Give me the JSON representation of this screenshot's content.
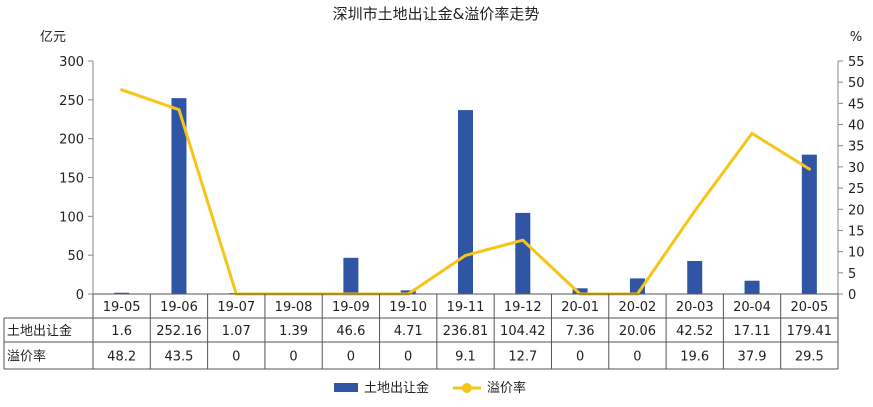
{
  "chart_data": {
    "type": "bar",
    "title": "深圳市土地出让金&溢价率走势",
    "y_left_unit": "亿元",
    "y_right_unit": "%",
    "y_left_ticks": [
      "0",
      "50",
      "100",
      "150",
      "200",
      "250",
      "300"
    ],
    "y_right_ticks": [
      "0",
      "5",
      "10",
      "15",
      "20",
      "25",
      "30",
      "35",
      "40",
      "45",
      "50",
      "55"
    ],
    "ylim_left": [
      0,
      300
    ],
    "ylim_right": [
      0,
      55
    ],
    "categories": [
      "19-05",
      "19-06",
      "19-07",
      "19-08",
      "19-09",
      "19-10",
      "19-11",
      "19-12",
      "20-01",
      "20-02",
      "20-03",
      "20-04",
      "20-05"
    ],
    "series": [
      {
        "name": "土地出让金",
        "kind": "bar",
        "axis": "left",
        "color": "#2f55a4",
        "values": [
          1.6,
          252.16,
          1.07,
          1.39,
          46.6,
          4.71,
          236.81,
          104.42,
          7.36,
          20.06,
          42.52,
          17.11,
          179.41
        ],
        "labels": [
          "1.6",
          "252.16",
          "1.07",
          "1.39",
          "46.6",
          "4.71",
          "236.81",
          "104.42",
          "7.36",
          "20.06",
          "42.52",
          "17.11",
          "179.41"
        ]
      },
      {
        "name": "溢价率",
        "kind": "line",
        "axis": "right",
        "color": "#f5c518",
        "values": [
          48.2,
          43.5,
          0,
          0,
          0,
          0,
          9.1,
          12.7,
          0,
          0,
          19.6,
          37.9,
          29.5
        ],
        "labels": [
          "48.2",
          "43.5",
          "0",
          "0",
          "0",
          "0",
          "9.1",
          "12.7",
          "0",
          "0",
          "19.6",
          "37.9",
          "29.5"
        ]
      }
    ],
    "legend_position": "bottom",
    "grid": false,
    "data_table": true
  }
}
